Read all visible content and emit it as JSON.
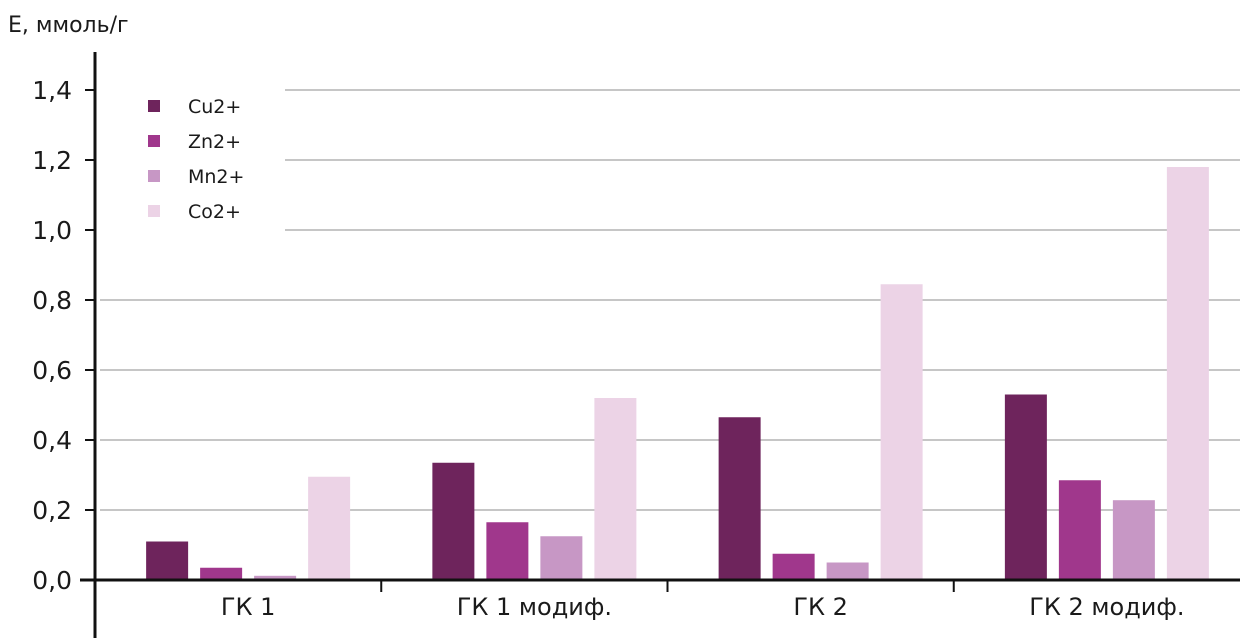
{
  "chart_data": {
    "type": "bar",
    "ylabel": "E, ммоль/г",
    "categories": [
      "ГК 1",
      "ГК 1 модиф.",
      "ГК 2",
      "ГК 2 модиф."
    ],
    "yticks": [
      "0,0",
      "0,2",
      "0,4",
      "0,6",
      "0,8",
      "1,0",
      "1,2",
      "1,4"
    ],
    "ylim": [
      0,
      1.4
    ],
    "grid": true,
    "legend_position": "top-left",
    "series": [
      {
        "name": "Cu2+",
        "color": "#6e245c",
        "values": [
          0.11,
          0.335,
          0.465,
          0.53
        ]
      },
      {
        "name": "Zn2+",
        "color": "#a0378c",
        "values": [
          0.035,
          0.165,
          0.075,
          0.285
        ]
      },
      {
        "name": "Mn2+",
        "color": "#c797c5",
        "values": [
          0.012,
          0.125,
          0.05,
          0.228
        ]
      },
      {
        "name": "Co2+",
        "color": "#ecd3e6",
        "values": [
          0.295,
          0.52,
          0.845,
          1.18
        ]
      }
    ]
  }
}
